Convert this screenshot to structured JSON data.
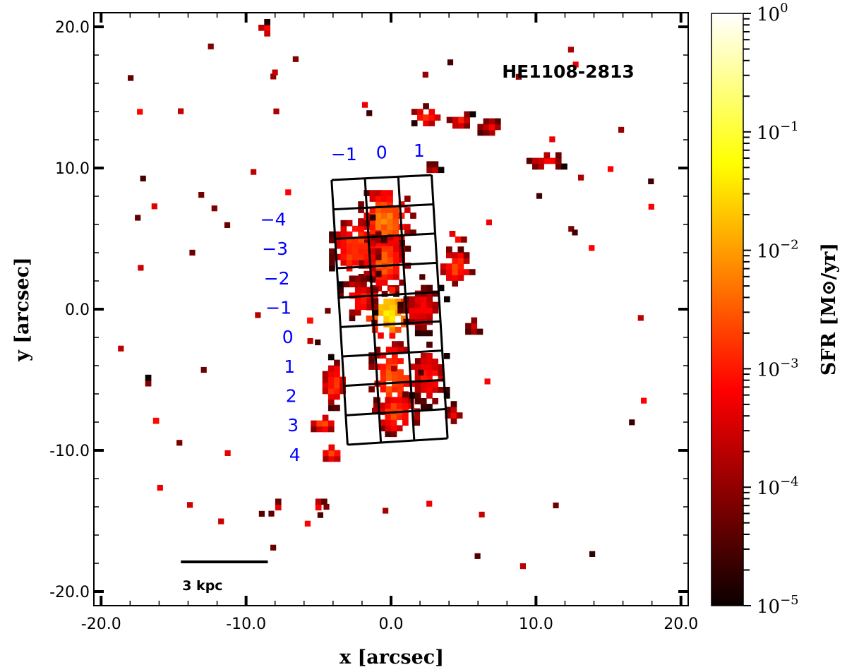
{
  "chart_data": {
    "type": "heatmap",
    "title": "HE1108-2813",
    "xlabel": "x [arcsec]",
    "ylabel": "y [arcsec]",
    "xlim": [
      -20.5,
      20.5
    ],
    "ylim": [
      -21,
      21
    ],
    "xticks": [
      -20,
      -10,
      0,
      10,
      20
    ],
    "xtick_labels": [
      "-20.0",
      "-10.0",
      "0.0",
      "10.0",
      "20.0"
    ],
    "yticks": [
      20,
      10,
      0,
      -10,
      -20
    ],
    "ytick_labels": [
      "20.0",
      "10.0",
      "0.0",
      "-10.0",
      "-20.0"
    ],
    "colorbar": {
      "label": "SFR [M⊙/yr]",
      "scale": "log",
      "range": [
        1e-05,
        1
      ],
      "colormap": "hot",
      "ticks": [
        {
          "exp": 0,
          "base": "10",
          "sup": "0"
        },
        {
          "exp": -1,
          "base": "10",
          "sup": "−1"
        },
        {
          "exp": -2,
          "base": "10",
          "sup": "−2"
        },
        {
          "exp": -3,
          "base": "10",
          "sup": "−3"
        },
        {
          "exp": -4,
          "base": "10",
          "sup": "−4"
        },
        {
          "exp": -5,
          "base": "10",
          "sup": "−5"
        }
      ]
    },
    "sfr_regions_log10": [
      {
        "x": -0.6,
        "y": 6.5,
        "rx": 1.6,
        "ry": 2.2,
        "peak": -2.1
      },
      {
        "x": -0.7,
        "y": 3.5,
        "rx": 1.5,
        "ry": 2.0,
        "peak": -2.3
      },
      {
        "x": -0.3,
        "y": -0.1,
        "rx": 1.4,
        "ry": 1.5,
        "peak": -1.3
      },
      {
        "x": 0.0,
        "y": -4.6,
        "rx": 1.5,
        "ry": 2.2,
        "peak": -2.2
      },
      {
        "x": 0.2,
        "y": -7.2,
        "rx": 1.4,
        "ry": 1.4,
        "peak": -2.4
      },
      {
        "x": -2.6,
        "y": 4.5,
        "rx": 1.6,
        "ry": 2.3,
        "peak": -2.5
      },
      {
        "x": -2.4,
        "y": 1.0,
        "rx": 1.3,
        "ry": 1.4,
        "peak": -2.8
      },
      {
        "x": 2.0,
        "y": 0.2,
        "rx": 1.5,
        "ry": 1.6,
        "peak": -3.0
      },
      {
        "x": 2.4,
        "y": -4.5,
        "rx": 1.2,
        "ry": 2.0,
        "peak": -2.8
      },
      {
        "x": 4.3,
        "y": 3.2,
        "rx": 1.0,
        "ry": 1.2,
        "peak": -2.5
      },
      {
        "x": 4.4,
        "y": 5.4,
        "rx": 0.6,
        "ry": 0.5,
        "peak": -2.7
      },
      {
        "x": 2.3,
        "y": 13.9,
        "rx": 1.0,
        "ry": 0.7,
        "peak": -2.7
      },
      {
        "x": 4.6,
        "y": 13.6,
        "rx": 0.9,
        "ry": 0.6,
        "peak": -2.9
      },
      {
        "x": 6.6,
        "y": 13.1,
        "rx": 0.8,
        "ry": 0.6,
        "peak": -3.1
      },
      {
        "x": 10.5,
        "y": 10.7,
        "rx": 1.2,
        "ry": 0.6,
        "peak": -3.0
      },
      {
        "x": 2.7,
        "y": 10.2,
        "rx": 0.5,
        "ry": 0.4,
        "peak": -3.3
      },
      {
        "x": -4.1,
        "y": -5.1,
        "rx": 0.8,
        "ry": 1.6,
        "peak": -2.6
      },
      {
        "x": -4.9,
        "y": -7.9,
        "rx": 0.8,
        "ry": 0.6,
        "peak": -2.4
      },
      {
        "x": -4.2,
        "y": -10.0,
        "rx": 0.7,
        "ry": 0.6,
        "peak": -2.5
      },
      {
        "x": -5.1,
        "y": -13.7,
        "rx": 0.4,
        "ry": 0.4,
        "peak": -2.8
      },
      {
        "x": -8.0,
        "y": -13.7,
        "rx": 0.3,
        "ry": 0.4,
        "peak": -3.2
      },
      {
        "x": -8.9,
        "y": 20.0,
        "rx": 0.5,
        "ry": 0.5,
        "peak": -3.0
      },
      {
        "x": -16.3,
        "y": -7.7,
        "rx": 0.4,
        "ry": 0.3,
        "peak": -2.8
      },
      {
        "x": -17.1,
        "y": -5.2,
        "rx": 0.2,
        "ry": 0.8,
        "peak": -3.3
      },
      {
        "x": 4.1,
        "y": -7.2,
        "rx": 0.6,
        "ry": 0.7,
        "peak": -3.2
      },
      {
        "x": 5.5,
        "y": -1.0,
        "rx": 0.6,
        "ry": 0.6,
        "peak": -3.3
      },
      {
        "x": -5.8,
        "y": -0.6,
        "rx": 0.3,
        "ry": 0.3,
        "peak": -3.0
      }
    ],
    "annotations": {
      "grid_columns": [
        "−1",
        "0",
        "1"
      ],
      "grid_rows": [
        "−4",
        "−3",
        "−2",
        "−1",
        "0",
        "1",
        "2",
        "3",
        "4"
      ],
      "grid_corners_arcsec": {
        "top_left": [
          -4.1,
          9.15
        ],
        "top_right": [
          2.8,
          9.5
        ],
        "bottom_right": [
          3.9,
          -9.15
        ],
        "bottom_left": [
          -3.0,
          -9.6
        ]
      },
      "scale_bar": {
        "label": "3 kpc",
        "x_from": -14.5,
        "x_to": -8.5,
        "y": -17.9
      }
    }
  }
}
